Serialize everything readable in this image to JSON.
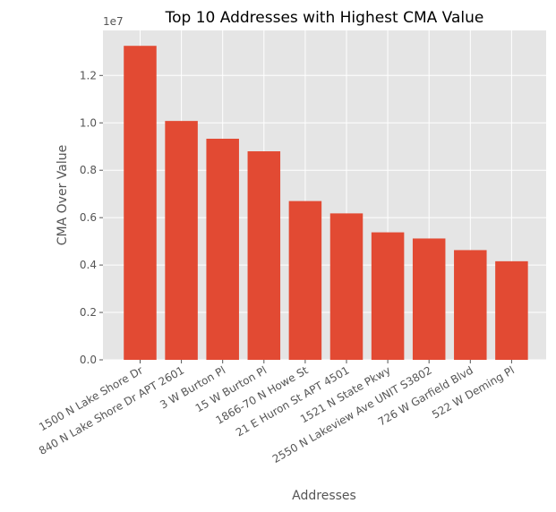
{
  "chart_data": {
    "type": "bar",
    "title": "Top 10 Addresses with Highest CMA Value",
    "xlabel": "Addresses",
    "ylabel": "CMA Over Value",
    "y_multiplier_label": "1e7",
    "ylim": [
      0,
      13900000
    ],
    "y_ticks": [
      0,
      2000000,
      4000000,
      6000000,
      8000000,
      10000000,
      12000000
    ],
    "y_tick_labels": [
      "0.0",
      "0.2",
      "0.4",
      "0.6",
      "0.8",
      "1.0",
      "1.2"
    ],
    "grid": true,
    "bar_color": "#E24A33",
    "background_color": "#E5E5E5",
    "categories": [
      "1500 N Lake Shore Dr",
      "840 N Lake Shore Dr APT 2601",
      "3 W Burton Pl",
      "15 W Burton Pl",
      "1866-70 N Howe St",
      "21 E Huron St APT 4501",
      "1521 N State Pkwy",
      "2550 N Lakeview Ave UNIT S3802",
      "726 W Garfield Blvd",
      "522 W Deming Pl"
    ],
    "values": [
      13250000,
      10080000,
      9330000,
      8800000,
      6700000,
      6180000,
      5380000,
      5120000,
      4630000,
      4160000
    ]
  }
}
